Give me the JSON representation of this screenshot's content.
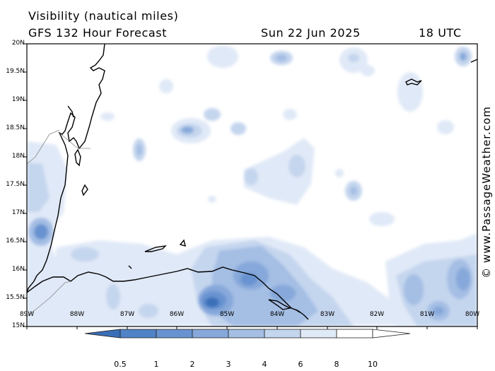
{
  "header": {
    "title": "Visibility (nautical miles)",
    "forecast": "GFS 132 Hour Forecast",
    "date": "Sun 22 Jun 2025",
    "time": "18 UTC"
  },
  "credit": "© www.PassageWeather.com",
  "axes": {
    "lat_labels": [
      "20N",
      "19.5N",
      "19N",
      "18.5N",
      "18N",
      "17.5N",
      "17N",
      "16.5N",
      "16N",
      "15.5N",
      "15N"
    ],
    "lon_labels": [
      "89W",
      "88W",
      "87W",
      "86W",
      "85W",
      "84W",
      "83W",
      "82W",
      "81W",
      "80W"
    ]
  },
  "colorbar": {
    "labels": [
      "0.5",
      "1",
      "2",
      "3",
      "4",
      "6",
      "8",
      "10"
    ],
    "colors": [
      "#3a6fb8",
      "#4f82c6",
      "#6893d0",
      "#86a8da",
      "#a4bee4",
      "#c4d5ee",
      "#e0e9f7",
      "#ffffff"
    ]
  },
  "colors": {
    "coast": "#000000",
    "frame": "#000000",
    "ocean": "#ffffff"
  }
}
